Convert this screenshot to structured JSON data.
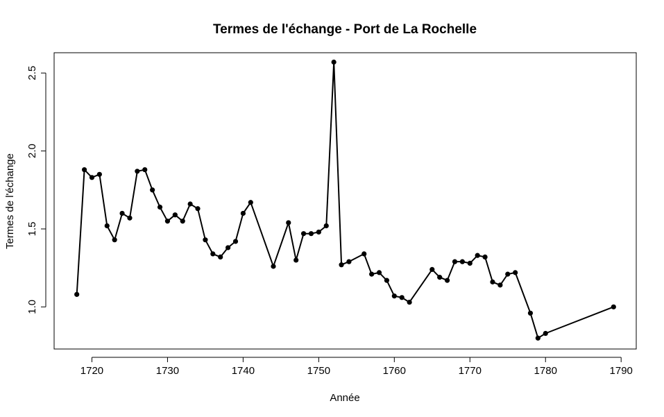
{
  "chart_data": {
    "type": "line",
    "title": "Termes de l'échange - Port de La Rochelle",
    "xlabel": "Année",
    "ylabel": "Termes de l'échange",
    "xlim": [
      1715,
      1792
    ],
    "ylim": [
      0.73,
      2.63
    ],
    "x_ticks": [
      1720,
      1730,
      1740,
      1750,
      1760,
      1770,
      1780,
      1790
    ],
    "y_ticks": [
      1.0,
      1.5,
      2.0,
      2.5
    ],
    "y_tick_labels": [
      "1.0",
      "1.5",
      "2.0",
      "2.5"
    ],
    "grid": false,
    "markers": "filled-circle",
    "line_color": "#000000",
    "series": [
      {
        "x": [
          1718,
          1719,
          1720,
          1721,
          1722,
          1723,
          1724,
          1725,
          1726,
          1727,
          1728,
          1729,
          1730,
          1731,
          1732,
          1733,
          1734,
          1735,
          1736,
          1737,
          1738,
          1739,
          1740,
          1741,
          1744,
          1746,
          1747,
          1748,
          1749,
          1750,
          1751,
          1752,
          1753,
          1754,
          1756,
          1757,
          1758,
          1759,
          1760,
          1761,
          1762,
          1765,
          1766,
          1767,
          1768,
          1769,
          1770,
          1771,
          1772,
          1773,
          1774,
          1775,
          1776,
          1778,
          1779,
          1780,
          1789
        ],
        "y": [
          1.08,
          1.88,
          1.83,
          1.85,
          1.52,
          1.43,
          1.6,
          1.57,
          1.87,
          1.88,
          1.75,
          1.64,
          1.55,
          1.59,
          1.55,
          1.66,
          1.63,
          1.43,
          1.34,
          1.32,
          1.38,
          1.42,
          1.6,
          1.67,
          1.26,
          1.54,
          1.3,
          1.47,
          1.47,
          1.48,
          1.52,
          2.57,
          1.27,
          1.29,
          1.34,
          1.21,
          1.22,
          1.17,
          1.07,
          1.06,
          1.03,
          1.24,
          1.19,
          1.17,
          1.29,
          1.29,
          1.28,
          1.33,
          1.32,
          1.16,
          1.14,
          1.21,
          1.22,
          0.96,
          0.8,
          0.83,
          1.0
        ]
      }
    ]
  }
}
